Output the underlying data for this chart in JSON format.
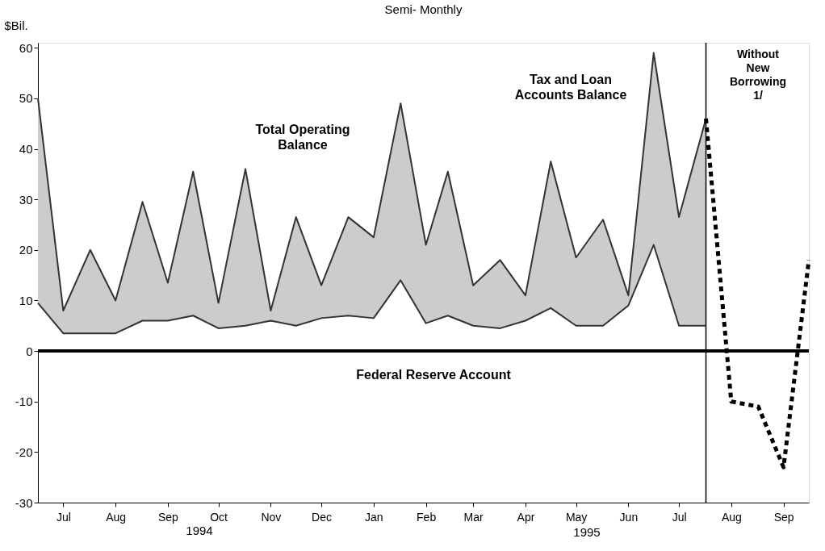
{
  "chart_data": {
    "type": "area",
    "subtitle": "Semi- Monthly",
    "ylabel": "$Bil.",
    "x": [
      "1994-07-01",
      "1994-07-16",
      "1994-08-01",
      "1994-08-16",
      "1994-09-01",
      "1994-09-16",
      "1994-10-01",
      "1994-10-16",
      "1994-11-01",
      "1994-11-16",
      "1994-12-01",
      "1994-12-16",
      "1995-01-01",
      "1995-01-16",
      "1995-02-01",
      "1995-02-16",
      "1995-03-01",
      "1995-03-16",
      "1995-04-01",
      "1995-04-16",
      "1995-05-01",
      "1995-05-16",
      "1995-06-01",
      "1995-06-16",
      "1995-07-01",
      "1995-07-16",
      "1995-08-01",
      "1995-08-16",
      "1995-09-01",
      "1995-09-16",
      "1995-10-01"
    ],
    "stacked": true,
    "series": [
      {
        "name": "Federal Reserve Account",
        "color": "#ffffff",
        "values": [
          9.5,
          3.5,
          3.5,
          3.5,
          6,
          6,
          7,
          4.5,
          5,
          6,
          5,
          6.5,
          7,
          6.5,
          14,
          5.5,
          7,
          5,
          4.5,
          6,
          8.5,
          5,
          5,
          9,
          21,
          5,
          5,
          null,
          null,
          null,
          null
        ]
      },
      {
        "name": "Tax and Loan Accounts Balance",
        "color": "#cccccc",
        "values": [
          40.5,
          4.5,
          16.5,
          6.5,
          23.5,
          7.5,
          28.5,
          5,
          31,
          2,
          21.5,
          6.5,
          19.5,
          16,
          35,
          15.5,
          28.5,
          8,
          13.5,
          5,
          29,
          13.5,
          21,
          2,
          38,
          21.5,
          41,
          null,
          null,
          null,
          null
        ]
      },
      {
        "type": "line",
        "color": "#000000",
        "line_style": "dashed",
        "values": [
          null,
          null,
          null,
          null,
          null,
          null,
          null,
          null,
          null,
          null,
          null,
          null,
          null,
          null,
          null,
          null,
          null,
          null,
          null,
          null,
          null,
          null,
          null,
          null,
          null,
          null,
          46,
          -10,
          -11,
          -23,
          18
        ]
      }
    ],
    "xlim": [
      "1994-07-01",
      "1995-10-01"
    ],
    "xticks": [
      {
        "value": "1994-07-16",
        "label": "Jul"
      },
      {
        "value": "1994-08-16",
        "label": "Aug"
      },
      {
        "value": "1994-09-16",
        "label": "Sep"
      },
      {
        "value": "1994-10-16",
        "label": "Oct"
      },
      {
        "value": "1994-11-16",
        "label": "Nov"
      },
      {
        "value": "1994-12-16",
        "label": "Dec"
      },
      {
        "value": "1995-01-16",
        "label": "Jan"
      },
      {
        "value": "1995-02-16",
        "label": "Feb"
      },
      {
        "value": "1995-03-16",
        "label": "Mar"
      },
      {
        "value": "1995-04-16",
        "label": "Apr"
      },
      {
        "value": "1995-05-16",
        "label": "May"
      },
      {
        "value": "1995-06-16",
        "label": "Jun"
      },
      {
        "value": "1995-07-16",
        "label": "Jul"
      },
      {
        "value": "1995-08-16",
        "label": "Aug"
      },
      {
        "value": "1995-09-16",
        "label": "Sep"
      }
    ],
    "ylim": [
      -30,
      61
    ],
    "yticks": [
      -30,
      -20,
      -10,
      0,
      10,
      20,
      30,
      40,
      50,
      60
    ],
    "ref_lines": [
      {
        "axis": "y",
        "value": 0,
        "color": "#000000"
      },
      {
        "axis": "x",
        "value": "1995-08-01",
        "color": "#000000"
      }
    ],
    "annotations": [
      "Total Operating Balance",
      "Without New Borrowing 1/",
      "1994",
      "1995"
    ],
    "grid": false,
    "legend": false
  }
}
